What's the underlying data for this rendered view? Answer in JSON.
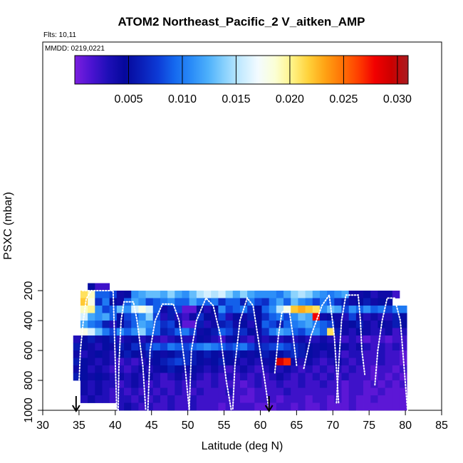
{
  "chart_data": {
    "type": "heatmap",
    "title": "ATOM2 Northeast_Pacific_2 V_aitken_AMP",
    "flights_label": "Flts: 10,11",
    "dates_label": "MMDD: 0219,0221",
    "xlabel": "Latitude (deg N)",
    "ylabel": "PSXC (mbar)",
    "xlim": [
      30,
      85
    ],
    "ylim": [
      1000,
      50
    ],
    "x_ticks": [
      "30",
      "35",
      "40",
      "45",
      "50",
      "55",
      "60",
      "65",
      "70",
      "75",
      "80",
      "85"
    ],
    "y_ticks": [
      "200",
      "400",
      "600",
      "800",
      "1000"
    ],
    "colorbar": {
      "min": 0,
      "max": 0.031,
      "tick_labels": [
        "0.005",
        "0.010",
        "0.015",
        "0.020",
        "0.025",
        "0.030"
      ],
      "colors": [
        "#7b1fe0",
        "#4b13d1",
        "#1e0fb7",
        "#05089c",
        "#0a1fb8",
        "#0d3bd6",
        "#1569ef",
        "#2a8cf8",
        "#4db0fb",
        "#8ad2fd",
        "#c6ebff",
        "#f3fbff",
        "#fbffd6",
        "#fff489",
        "#ffd23b",
        "#ffa314",
        "#ff7406",
        "#ff3f00",
        "#f20000",
        "#cc0000",
        "#a81b20"
      ]
    },
    "arrows_at_latitude": [
      34.6,
      61.2
    ],
    "lat_start": 34.2,
    "lat_step": 1,
    "pressure_bins": [
      175,
      225,
      275,
      325,
      375,
      425,
      475,
      525,
      575,
      625,
      675,
      725,
      775,
      825,
      875,
      925,
      975
    ],
    "rows": [
      [
        null,
        null,
        0.005,
        0.002,
        0.002,
        null,
        null,
        null,
        null,
        null,
        null,
        null,
        null,
        null,
        null,
        null,
        null,
        null,
        null,
        null,
        null,
        null,
        null,
        null,
        null,
        null,
        null,
        null,
        null,
        null,
        null,
        null,
        null,
        null,
        null,
        null,
        null,
        null,
        null,
        null,
        null,
        null,
        null,
        null,
        null,
        null,
        null
      ],
      [
        null,
        0.021,
        0.019,
        0.009,
        0.009,
        0.008,
        0.004,
        0.005,
        0.011,
        0.012,
        0.013,
        0.013,
        0.012,
        0.014,
        0.012,
        0.011,
        0.013,
        0.015,
        0.016,
        0.015,
        0.016,
        0.014,
        0.012,
        0.014,
        0.012,
        0.011,
        0.011,
        0.011,
        0.01,
        0.012,
        0.014,
        0.015,
        0.014,
        0.012,
        0.011,
        0.01,
        0.011,
        0.012,
        0.004,
        0.004,
        0.005,
        0.003,
        0.004,
        0.004,
        0.002,
        null,
        null
      ],
      [
        null,
        0.022,
        0.018,
        0.007,
        0.01,
        0.005,
        0.004,
        0.009,
        0.012,
        0.011,
        0.008,
        0.009,
        0.01,
        0.011,
        0.009,
        0.009,
        0.012,
        0.01,
        0.009,
        0.01,
        0.007,
        0.009,
        0.009,
        0.006,
        0.01,
        0.008,
        0.007,
        0.01,
        0.012,
        0.009,
        0.013,
        0.011,
        0.01,
        0.008,
        0.01,
        0.009,
        0.007,
        0.006,
        0.004,
        0.005,
        0.006,
        0.004,
        0.005,
        0.005,
        null,
        null,
        null
      ],
      [
        null,
        0.019,
        0.02,
        0.011,
        0.008,
        0.009,
        0.013,
        0.011,
        0.016,
        0.018,
        0.016,
        0.009,
        0.004,
        0.006,
        0.008,
        0.001,
        0.001,
        0.005,
        0.003,
        0.005,
        0.011,
        0.008,
        0.009,
        0.01,
        0.007,
        0.005,
        0.009,
        0.011,
        0.015,
        0.018,
        0.022,
        0.023,
        0.022,
        0.021,
        0.011,
        0.013,
        0.012,
        0.008,
        0.011,
        0.009,
        0.011,
        0.009,
        0.01,
        0.008,
        0.01,
        0.01,
        null
      ],
      [
        null,
        0.016,
        0.012,
        0.011,
        0.012,
        0.009,
        0.005,
        0.008,
        0.009,
        0.011,
        0.014,
        0.008,
        0.003,
        0.006,
        0.003,
        0.002,
        0.004,
        0.007,
        0.005,
        0.004,
        0.008,
        0.003,
        0.005,
        0.004,
        0.006,
        0.005,
        0.007,
        0.009,
        0.01,
        0.008,
        0.011,
        0.013,
        0.012,
        0.028,
        0.004,
        0.005,
        0.004,
        0.003,
        0.008,
        0.004,
        0.003,
        0.004,
        0.003,
        0.003,
        0.006,
        0.005,
        null
      ],
      [
        null,
        0.012,
        0.01,
        0.009,
        0.006,
        0.003,
        0.005,
        0.007,
        0.009,
        0.012,
        0.011,
        0.009,
        0.007,
        0.008,
        0.005,
        0.001,
        0.001,
        0.006,
        0.003,
        0.004,
        0.006,
        0.007,
        0.004,
        0.005,
        0.003,
        0.005,
        0.009,
        0.008,
        0.006,
        0.009,
        0.01,
        0.011,
        0.012,
        0.01,
        0.009,
        0.008,
        0.005,
        0.004,
        0.005,
        0.006,
        0.004,
        0.003,
        0.005,
        0.004,
        0.006,
        0.005,
        null
      ],
      [
        null,
        0.018,
        0.016,
        0.013,
        0.01,
        0.008,
        0.011,
        0.009,
        0.011,
        0.014,
        0.01,
        0.009,
        0.006,
        0.007,
        0.009,
        0.01,
        0.008,
        0.004,
        0.005,
        0.006,
        0.009,
        0.008,
        0.006,
        0.007,
        0.005,
        0.004,
        0.007,
        0.01,
        0.012,
        0.011,
        0.009,
        0.008,
        0.01,
        0.011,
        0.009,
        0.021,
        0.006,
        0.004,
        0.003,
        0.005,
        0.004,
        0.003,
        0.003,
        0.004,
        0.002,
        0.003,
        null
      ],
      [
        0.003,
        0.005,
        0.006,
        0.004,
        0.005,
        0.006,
        0.003,
        0.004,
        0.005,
        0.003,
        0.004,
        0.003,
        0.002,
        0.003,
        0.004,
        0.003,
        0.003,
        0.005,
        0.004,
        0.003,
        0.002,
        0.004,
        0.005,
        0.003,
        0.002,
        0.004,
        0.003,
        0.004,
        0.003,
        0.004,
        0.003,
        0.004,
        0.003,
        0.003,
        0.004,
        0.003,
        0.003,
        0.002,
        0.003,
        0.002,
        0.001,
        0.002,
        0.002,
        0.001,
        0.002,
        0.002,
        null
      ],
      [
        0.006,
        0.005,
        0.004,
        0.003,
        0.005,
        0.004,
        0.006,
        0.005,
        0.007,
        0.006,
        0.008,
        0.009,
        0.008,
        0.01,
        0.009,
        0.008,
        0.009,
        0.01,
        0.011,
        0.01,
        0.009,
        0.008,
        0.009,
        0.01,
        0.008,
        0.006,
        0.007,
        0.008,
        0.009,
        0.008,
        0.007,
        0.006,
        0.005,
        0.004,
        0.005,
        0.004,
        0.005,
        0.004,
        0.003,
        0.004,
        0.003,
        0.002,
        0.003,
        0.002,
        0.003,
        0.002,
        null
      ],
      [
        0.004,
        0.003,
        0.004,
        0.005,
        0.004,
        0.003,
        0.005,
        0.006,
        0.005,
        0.004,
        0.006,
        0.005,
        0.004,
        0.005,
        0.006,
        0.007,
        0.006,
        0.005,
        0.006,
        0.005,
        0.004,
        0.005,
        0.006,
        0.005,
        0.004,
        0.005,
        0.006,
        0.005,
        0.005,
        0.006,
        0.007,
        0.006,
        0.005,
        0.004,
        0.003,
        0.004,
        0.003,
        0.002,
        0.003,
        0.003,
        0.002,
        0.002,
        0.003,
        0.002,
        0.002,
        0.001,
        null
      ],
      [
        0.006,
        0.005,
        0.004,
        0.003,
        0.004,
        0.003,
        0.002,
        0.003,
        0.002,
        0.003,
        0.004,
        0.005,
        0.006,
        0.007,
        0.008,
        0.007,
        0.006,
        0.005,
        0.004,
        0.005,
        0.006,
        0.005,
        0.004,
        0.003,
        0.004,
        0.003,
        0.004,
        0.005,
        0.029,
        0.027,
        0.004,
        0.003,
        0.004,
        0.003,
        0.002,
        0.003,
        0.004,
        0.003,
        0.002,
        0.003,
        0.002,
        0.002,
        0.003,
        0.002,
        0.002,
        0.001,
        null
      ],
      [
        0.004,
        0.005,
        0.003,
        0.004,
        0.003,
        0.002,
        0.003,
        0.002,
        0.003,
        0.004,
        0.003,
        0.004,
        0.005,
        0.006,
        0.005,
        0.004,
        0.005,
        0.004,
        0.003,
        0.004,
        0.003,
        0.002,
        0.003,
        0.004,
        0.003,
        0.002,
        0.003,
        0.004,
        0.003,
        0.004,
        0.003,
        0.002,
        0.003,
        0.002,
        0.003,
        0.002,
        0.003,
        0.002,
        0.003,
        0.002,
        0.002,
        0.001,
        0.002,
        0.002,
        0.001,
        0.002,
        null
      ],
      [
        0.006,
        0.005,
        0.004,
        0.005,
        0.004,
        0.003,
        0.004,
        0.003,
        0.004,
        0.003,
        0.004,
        0.003,
        0.002,
        0.003,
        0.004,
        0.003,
        0.004,
        0.003,
        0.002,
        0.003,
        0.002,
        0.003,
        0.002,
        0.003,
        0.002,
        0.003,
        0.002,
        0.003,
        0.004,
        0.003,
        0.002,
        0.003,
        0.002,
        0.003,
        0.002,
        0.003,
        0.002,
        0.003,
        0.002,
        0.002,
        0.002,
        0.001,
        0.002,
        0.001,
        0.002,
        0.001,
        null
      ],
      [
        null,
        0.004,
        0.003,
        0.004,
        0.003,
        0.003,
        0.002,
        0.003,
        0.004,
        0.003,
        0.002,
        0.003,
        0.002,
        0.002,
        0.003,
        0.002,
        0.003,
        0.002,
        0.002,
        0.003,
        0.002,
        0.002,
        0.002,
        0.001,
        0.002,
        0.003,
        0.002,
        0.002,
        0.003,
        0.002,
        0.002,
        0.003,
        0.002,
        0.002,
        0.003,
        0.002,
        0.002,
        0.001,
        0.002,
        0.002,
        0.001,
        0.002,
        0.001,
        0.002,
        0.001,
        0.002,
        null
      ],
      [
        null,
        0.004,
        0.003,
        0.004,
        0.003,
        0.002,
        0.003,
        0.002,
        0.003,
        0.002,
        0.003,
        0.002,
        0.003,
        0.002,
        0.003,
        0.002,
        0.002,
        0.003,
        0.002,
        0.002,
        0.002,
        0.003,
        0.002,
        0.002,
        0.001,
        0.002,
        0.002,
        0.002,
        0.002,
        0.003,
        0.002,
        0.002,
        0.002,
        0.002,
        0.002,
        0.002,
        0.002,
        0.001,
        0.002,
        0.002,
        0.001,
        0.001,
        0.002,
        0.001,
        0.001,
        0.001,
        null
      ],
      [
        null,
        0.003,
        0.004,
        0.003,
        0.003,
        0.002,
        0.003,
        0.003,
        0.002,
        0.003,
        0.002,
        0.003,
        0.002,
        0.003,
        0.002,
        0.002,
        0.003,
        0.002,
        0.002,
        0.002,
        0.002,
        0.002,
        0.002,
        0.001,
        0.001,
        0.002,
        0.002,
        0.002,
        0.001,
        0.002,
        0.002,
        0.002,
        0.001,
        0.002,
        0.002,
        0.001,
        0.002,
        0.001,
        0.002,
        0.001,
        0.001,
        0.002,
        0.001,
        0.001,
        0.001,
        0.001,
        null
      ],
      [
        null,
        null,
        null,
        null,
        null,
        null,
        0.003,
        0.004,
        0.003,
        0.002,
        0.003,
        0.002,
        0.002,
        0.003,
        0.002,
        0.002,
        0.003,
        0.002,
        0.002,
        0.002,
        0.001,
        0.002,
        0.002,
        0.002,
        0.002,
        0.001,
        0.001,
        0.001,
        0.002,
        0.002,
        0.001,
        0.002,
        0.001,
        0.001,
        0.002,
        0.001,
        0.001,
        0.001,
        0.002,
        0.001,
        0.001,
        0.001,
        0.001,
        0.001,
        0.001,
        0.001,
        null
      ]
    ],
    "flight_tracks": [
      {
        "name": "",
        "points": [
          [
            35.5,
            200
          ],
          [
            37.2,
            200
          ],
          [
            39.7,
            200
          ],
          [
            40.2,
            1000
          ]
        ]
      },
      {
        "name": "",
        "points": [
          [
            34.9,
            930
          ],
          [
            35.2,
            600
          ],
          [
            35.6,
            400
          ],
          [
            36.0,
            255
          ],
          [
            36.7,
            200
          ]
        ]
      },
      {
        "name": "",
        "points": [
          [
            40.4,
            1000
          ],
          [
            40.5,
            700
          ],
          [
            40.8,
            400
          ],
          [
            41.2,
            275
          ],
          [
            42.5,
            275
          ],
          [
            43.0,
            400
          ],
          [
            43.8,
            700
          ],
          [
            44.2,
            1000
          ]
        ]
      },
      {
        "name": "",
        "points": [
          [
            44.5,
            1000
          ],
          [
            44.8,
            600
          ],
          [
            45.5,
            400
          ],
          [
            46.5,
            290
          ],
          [
            48.0,
            290
          ],
          [
            48.8,
            400
          ],
          [
            49.6,
            700
          ],
          [
            50.2,
            1000
          ]
        ]
      },
      {
        "name": "",
        "points": [
          [
            50.2,
            990
          ],
          [
            50.5,
            600
          ],
          [
            51.2,
            400
          ],
          [
            52.5,
            250
          ],
          [
            53.5,
            300
          ],
          [
            54.5,
            500
          ],
          [
            55.3,
            800
          ],
          [
            56.0,
            1000
          ]
        ]
      },
      {
        "name": "",
        "points": [
          [
            56.2,
            990
          ],
          [
            56.5,
            700
          ],
          [
            57.2,
            400
          ],
          [
            58.2,
            250
          ],
          [
            59.0,
            300
          ],
          [
            59.8,
            550
          ],
          [
            60.6,
            800
          ],
          [
            61.2,
            1000
          ]
        ]
      },
      {
        "name": "",
        "points": [
          [
            62.0,
            750
          ],
          [
            62.5,
            500
          ],
          [
            63.0,
            340
          ],
          [
            64.0,
            340
          ],
          [
            64.5,
            500
          ],
          [
            65.0,
            700
          ]
        ]
      },
      {
        "name": "",
        "points": [
          [
            66.0,
            720
          ],
          [
            67.0,
            500
          ],
          [
            68.5,
            300
          ],
          [
            69.5,
            230
          ],
          [
            70.2,
            500
          ],
          [
            70.6,
            800
          ],
          [
            70.8,
            950
          ]
        ]
      },
      {
        "name": "",
        "points": [
          [
            70.5,
            950
          ],
          [
            70.8,
            700
          ],
          [
            71.2,
            400
          ],
          [
            71.8,
            230
          ],
          [
            73.5,
            230
          ],
          [
            73.8,
            400
          ],
          [
            74.0,
            600
          ],
          [
            74.4,
            760
          ]
        ]
      },
      {
        "name": "",
        "points": [
          [
            75.8,
            830
          ],
          [
            76.2,
            600
          ],
          [
            76.8,
            400
          ],
          [
            77.5,
            250
          ],
          [
            78.5,
            250
          ],
          [
            79.3,
            400
          ],
          [
            79.8,
            700
          ],
          [
            80.3,
            1000
          ]
        ]
      }
    ]
  }
}
